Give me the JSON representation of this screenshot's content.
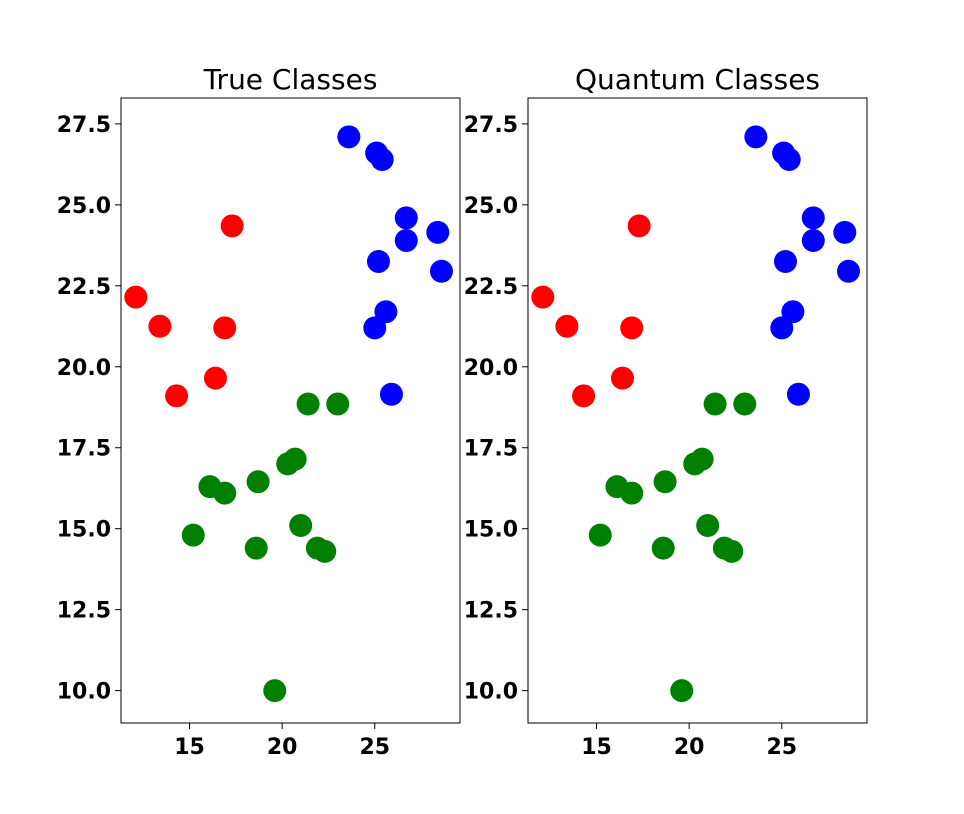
{
  "chart_data": [
    {
      "type": "scatter",
      "title": "True Classes",
      "xlim": [
        11.3,
        29.6
      ],
      "ylim": [
        9.0,
        28.3
      ],
      "x_ticks": [
        "15",
        "20",
        "25"
      ],
      "y_ticks": [
        "10.0",
        "12.5",
        "15.0",
        "17.5",
        "20.0",
        "22.5",
        "25.0",
        "27.5"
      ],
      "grid": false,
      "series": [
        {
          "color": "#ff0000",
          "points": [
            [
              12.1,
              22.15
            ],
            [
              13.4,
              21.25
            ],
            [
              14.3,
              19.1
            ],
            [
              16.4,
              19.65
            ],
            [
              16.9,
              21.2
            ],
            [
              17.3,
              24.35
            ]
          ]
        },
        {
          "color": "#0000ff",
          "points": [
            [
              23.6,
              27.1
            ],
            [
              25.1,
              26.6
            ],
            [
              25.4,
              26.4
            ],
            [
              26.7,
              24.6
            ],
            [
              28.4,
              24.15
            ],
            [
              26.7,
              23.9
            ],
            [
              25.2,
              23.25
            ],
            [
              28.6,
              22.95
            ],
            [
              25.6,
              21.7
            ],
            [
              25.0,
              21.2
            ],
            [
              25.9,
              19.15
            ]
          ]
        },
        {
          "color": "#008000",
          "points": [
            [
              21.4,
              18.85
            ],
            [
              23.0,
              18.85
            ],
            [
              20.7,
              17.15
            ],
            [
              20.3,
              17.0
            ],
            [
              18.7,
              16.45
            ],
            [
              16.1,
              16.3
            ],
            [
              16.9,
              16.1
            ],
            [
              21.0,
              15.1
            ],
            [
              15.2,
              14.8
            ],
            [
              18.6,
              14.4
            ],
            [
              21.9,
              14.4
            ],
            [
              22.3,
              14.3
            ],
            [
              19.6,
              10.0
            ]
          ]
        }
      ]
    },
    {
      "type": "scatter",
      "title": "Quantum Classes",
      "xlim": [
        11.3,
        29.6
      ],
      "ylim": [
        9.0,
        28.3
      ],
      "x_ticks": [
        "15",
        "20",
        "25"
      ],
      "y_ticks": [
        "10.0",
        "12.5",
        "15.0",
        "17.5",
        "20.0",
        "22.5",
        "25.0",
        "27.5"
      ],
      "grid": false,
      "series": [
        {
          "color": "#ff0000",
          "points": [
            [
              12.1,
              22.15
            ],
            [
              13.4,
              21.25
            ],
            [
              14.3,
              19.1
            ],
            [
              16.4,
              19.65
            ],
            [
              16.9,
              21.2
            ],
            [
              17.3,
              24.35
            ]
          ]
        },
        {
          "color": "#0000ff",
          "points": [
            [
              23.6,
              27.1
            ],
            [
              25.1,
              26.6
            ],
            [
              25.4,
              26.4
            ],
            [
              26.7,
              24.6
            ],
            [
              28.4,
              24.15
            ],
            [
              26.7,
              23.9
            ],
            [
              25.2,
              23.25
            ],
            [
              28.6,
              22.95
            ],
            [
              25.6,
              21.7
            ],
            [
              25.0,
              21.2
            ],
            [
              25.9,
              19.15
            ]
          ]
        },
        {
          "color": "#008000",
          "points": [
            [
              21.4,
              18.85
            ],
            [
              23.0,
              18.85
            ],
            [
              20.7,
              17.15
            ],
            [
              20.3,
              17.0
            ],
            [
              18.7,
              16.45
            ],
            [
              16.1,
              16.3
            ],
            [
              16.9,
              16.1
            ],
            [
              21.0,
              15.1
            ],
            [
              15.2,
              14.8
            ],
            [
              18.6,
              14.4
            ],
            [
              21.9,
              14.4
            ],
            [
              22.3,
              14.3
            ],
            [
              19.6,
              10.0
            ]
          ]
        }
      ]
    }
  ]
}
